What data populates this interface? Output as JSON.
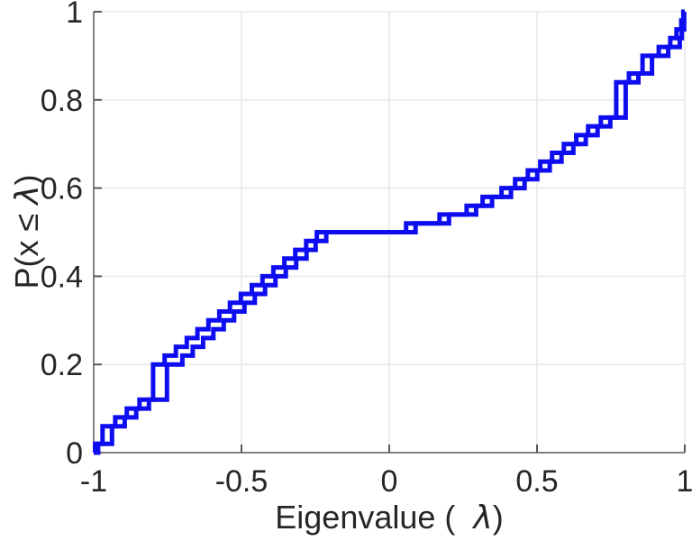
{
  "figure": {
    "background": "#FFFFFF",
    "xlabel": {
      "pre": "Eigenvalue (  ",
      "lambda": "λ",
      "post": ")"
    },
    "ylabel": {
      "pre": "P(x ≤ ",
      "lambda": "λ",
      "post": ")"
    }
  },
  "chart_data": {
    "type": "step",
    "subtype": "ecdf-staircase",
    "title": "",
    "xlabel": "Eigenvalue ( λ)",
    "ylabel": "P(x ≤ λ)",
    "xlim": [
      -1,
      1
    ],
    "ylim": [
      0,
      1
    ],
    "grid": true,
    "legend": false,
    "x_tick_values": [
      -1,
      -0.5,
      0,
      0.5,
      1
    ],
    "x_tick_labels": [
      "-1",
      "-0.5",
      "0",
      "0.5",
      "1"
    ],
    "y_tick_values": [
      0,
      0.2,
      0.4,
      0.6,
      0.8,
      1
    ],
    "y_tick_labels": [
      "0",
      "0.2",
      "0.4",
      "0.6",
      "0.8",
      "1"
    ],
    "line_color": "#0D0DF0",
    "line_width": 5,
    "grid_color": "#E7E7E7",
    "axis_color": "#808080",
    "tick_color": "#595959",
    "text_color": "#262626",
    "step_probability": 0.02,
    "series": [
      {
        "name": "ecdf-1",
        "eigenvalues": [
          -0.995,
          -0.97,
          -0.97,
          -0.927,
          -0.888,
          -0.845,
          -0.799,
          -0.799,
          -0.799,
          -0.799,
          -0.76,
          -0.722,
          -0.685,
          -0.649,
          -0.612,
          -0.575,
          -0.539,
          -0.502,
          -0.465,
          -0.429,
          -0.392,
          -0.355,
          -0.318,
          -0.281,
          -0.245,
          0.057,
          0.17,
          0.262,
          0.316,
          0.38,
          0.426,
          0.469,
          0.511,
          0.551,
          0.591,
          0.633,
          0.673,
          0.716,
          0.768,
          0.768,
          0.768,
          0.768,
          0.811,
          0.857,
          0.857,
          0.912,
          0.951,
          0.972,
          0.988,
          0.995
        ]
      },
      {
        "name": "ecdf-2",
        "eigenvalues": [
          -0.985,
          -0.938,
          -0.938,
          -0.895,
          -0.856,
          -0.813,
          -0.752,
          -0.752,
          -0.752,
          -0.752,
          -0.7,
          -0.665,
          -0.63,
          -0.595,
          -0.56,
          -0.525,
          -0.49,
          -0.455,
          -0.42,
          -0.385,
          -0.35,
          -0.315,
          -0.28,
          -0.249,
          -0.213,
          0.089,
          0.202,
          0.294,
          0.348,
          0.412,
          0.458,
          0.501,
          0.543,
          0.583,
          0.623,
          0.665,
          0.705,
          0.748,
          0.8,
          0.8,
          0.8,
          0.8,
          0.843,
          0.889,
          0.889,
          0.944,
          0.983,
          0.99,
          0.998,
          0.998
        ]
      }
    ]
  }
}
